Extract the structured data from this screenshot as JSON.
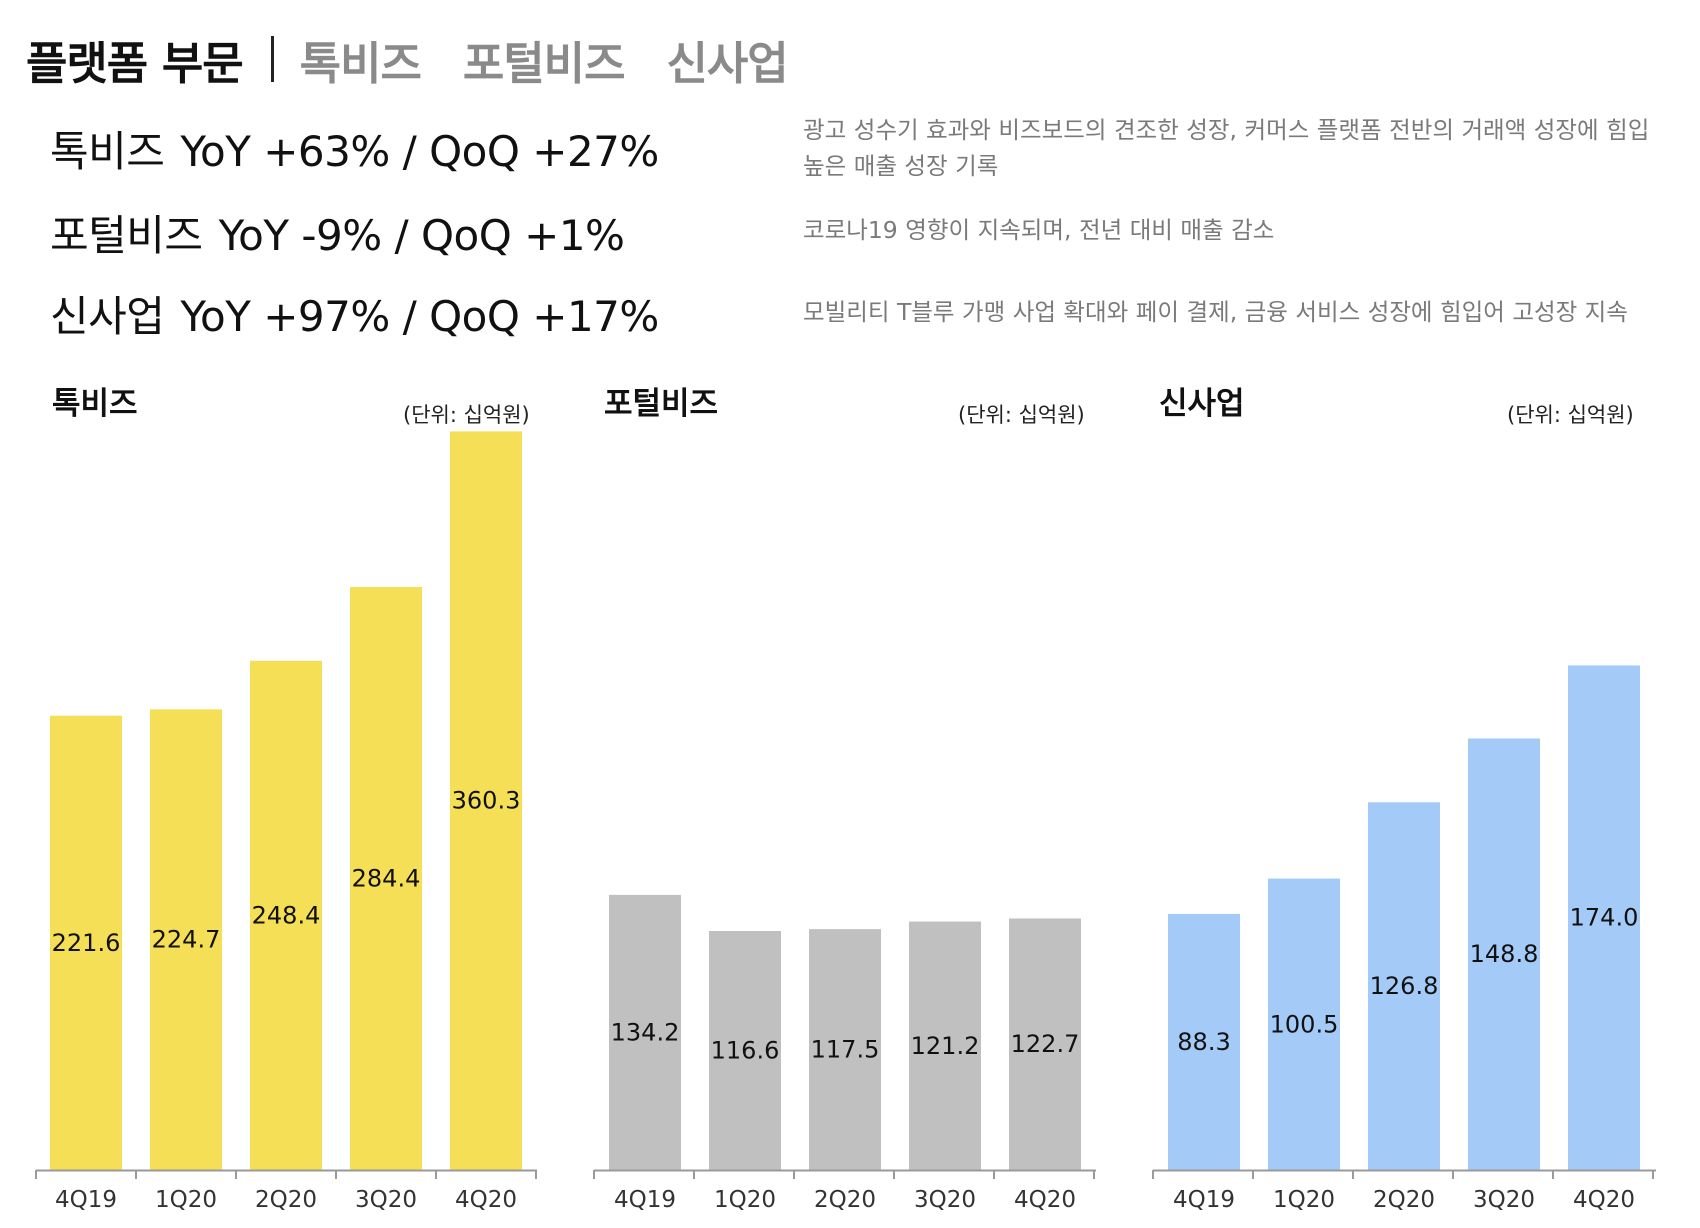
{
  "header": {
    "title": "플랫폼 부문",
    "tabs": [
      "톡비즈",
      "포털비즈",
      "신사업"
    ]
  },
  "summary": [
    {
      "name": "톡비즈",
      "metric": "YoY +63% / QoQ +27%",
      "desc_lines": [
        "광고 성수기 효과와 비즈보드의 견조한 성장, 커머스 플랫폼 전반의 거래액 성장에 힘입",
        "높은 매출 성장 기록"
      ]
    },
    {
      "name": "포털비즈",
      "metric": "YoY -9% / QoQ +1%",
      "desc_lines": [
        "코로나19 영향이 지속되며, 전년 대비 매출 감소"
      ]
    },
    {
      "name": "신사업",
      "metric": "YoY +97% / QoQ +17%",
      "desc_lines": [
        "모빌리티 T블루 가맹 사업 확대와 페이 결제, 금융 서비스 성장에 힘입어 고성장 지속"
      ]
    }
  ],
  "chart_data": [
    {
      "type": "bar",
      "title": "톡비즈",
      "unit": "(단위: 십억원)",
      "categories": [
        "4Q19",
        "1Q20",
        "2Q20",
        "3Q20",
        "4Q20"
      ],
      "values": [
        221.6,
        224.7,
        248.4,
        284.4,
        360.3
      ],
      "ylim": [
        0,
        370
      ],
      "color": "#F5DF57",
      "xlabel": "",
      "ylabel": ""
    },
    {
      "type": "bar",
      "title": "포털비즈",
      "unit": "(단위: 십억원)",
      "categories": [
        "4Q19",
        "1Q20",
        "2Q20",
        "3Q20",
        "4Q20"
      ],
      "values": [
        134.2,
        116.6,
        117.5,
        121.2,
        122.7
      ],
      "ylim": [
        0,
        370
      ],
      "color": "#C0C0C0",
      "xlabel": "",
      "ylabel": ""
    },
    {
      "type": "bar",
      "title": "신사업",
      "unit": "(단위: 십억원)",
      "categories": [
        "4Q19",
        "1Q20",
        "2Q20",
        "3Q20",
        "4Q20"
      ],
      "values": [
        88.3,
        100.5,
        126.8,
        148.8,
        174.0
      ],
      "ylim": [
        0,
        200
      ],
      "color": "#A4CBF7",
      "xlabel": "",
      "ylabel": ""
    }
  ]
}
